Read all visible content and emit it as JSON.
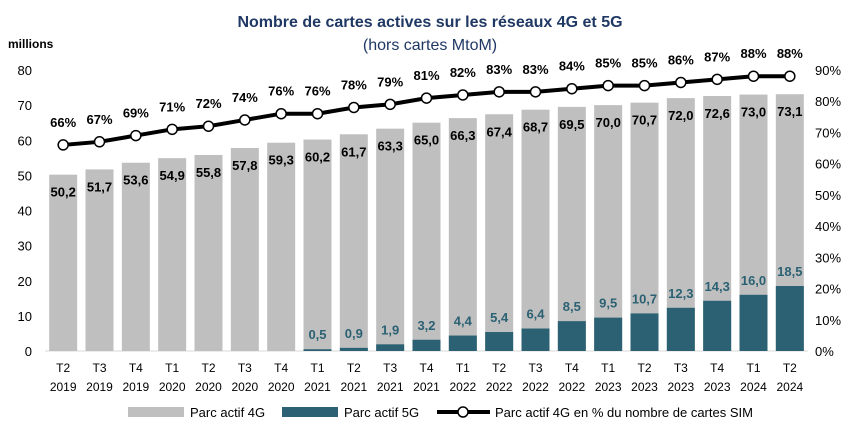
{
  "chart_data": {
    "type": "bar",
    "title": "Nombre de cartes actives sur les réseaux 4G et 5G",
    "subtitle": "(hors cartes MtoM)",
    "ylabel": "millions",
    "ylim": [
      0,
      80
    ],
    "y2lim": [
      0,
      90
    ],
    "yticks": [
      "0",
      "10",
      "20",
      "30",
      "40",
      "50",
      "60",
      "70",
      "80"
    ],
    "y2ticks": [
      "0%",
      "10%",
      "20%",
      "30%",
      "40%",
      "50%",
      "60%",
      "70%",
      "80%",
      "90%"
    ],
    "grid": false,
    "legend_position": "bottom",
    "categories": [
      [
        "T2",
        "2019"
      ],
      [
        "T3",
        "2019"
      ],
      [
        "T4",
        "2019"
      ],
      [
        "T1",
        "2020"
      ],
      [
        "T2",
        "2020"
      ],
      [
        "T3",
        "2020"
      ],
      [
        "T4",
        "2020"
      ],
      [
        "T1",
        "2021"
      ],
      [
        "T2",
        "2021"
      ],
      [
        "T3",
        "2021"
      ],
      [
        "T4",
        "2021"
      ],
      [
        "T1",
        "2022"
      ],
      [
        "T2",
        "2022"
      ],
      [
        "T3",
        "2022"
      ],
      [
        "T4",
        "2022"
      ],
      [
        "T1",
        "2023"
      ],
      [
        "T2",
        "2023"
      ],
      [
        "T3",
        "2023"
      ],
      [
        "T4",
        "2023"
      ],
      [
        "T1",
        "2024"
      ],
      [
        "T2",
        "2024"
      ]
    ],
    "series": [
      {
        "name": "Parc actif 4G",
        "type": "bar",
        "color": "#bfbfbf",
        "values": [
          50.2,
          51.7,
          53.6,
          54.9,
          55.8,
          57.8,
          59.3,
          60.2,
          61.7,
          63.3,
          65.0,
          66.3,
          67.4,
          68.7,
          69.5,
          70.0,
          70.7,
          72.0,
          72.6,
          73.0,
          73.1
        ]
      },
      {
        "name": "Parc actif 5G",
        "type": "bar",
        "color": "#2b6173",
        "values": [
          null,
          null,
          null,
          null,
          null,
          null,
          null,
          0.5,
          0.9,
          1.9,
          3.2,
          4.4,
          5.4,
          6.4,
          8.5,
          9.5,
          10.7,
          12.3,
          14.3,
          16.0,
          18.5
        ]
      },
      {
        "name": "Parc actif 4G en % du nombre de cartes SIM",
        "type": "line",
        "axis": "right",
        "color": "#000000",
        "values": [
          66,
          67,
          69,
          71,
          72,
          74,
          76,
          76,
          78,
          79,
          81,
          82,
          83,
          83,
          84,
          85,
          85,
          86,
          87,
          88,
          88
        ]
      }
    ]
  }
}
